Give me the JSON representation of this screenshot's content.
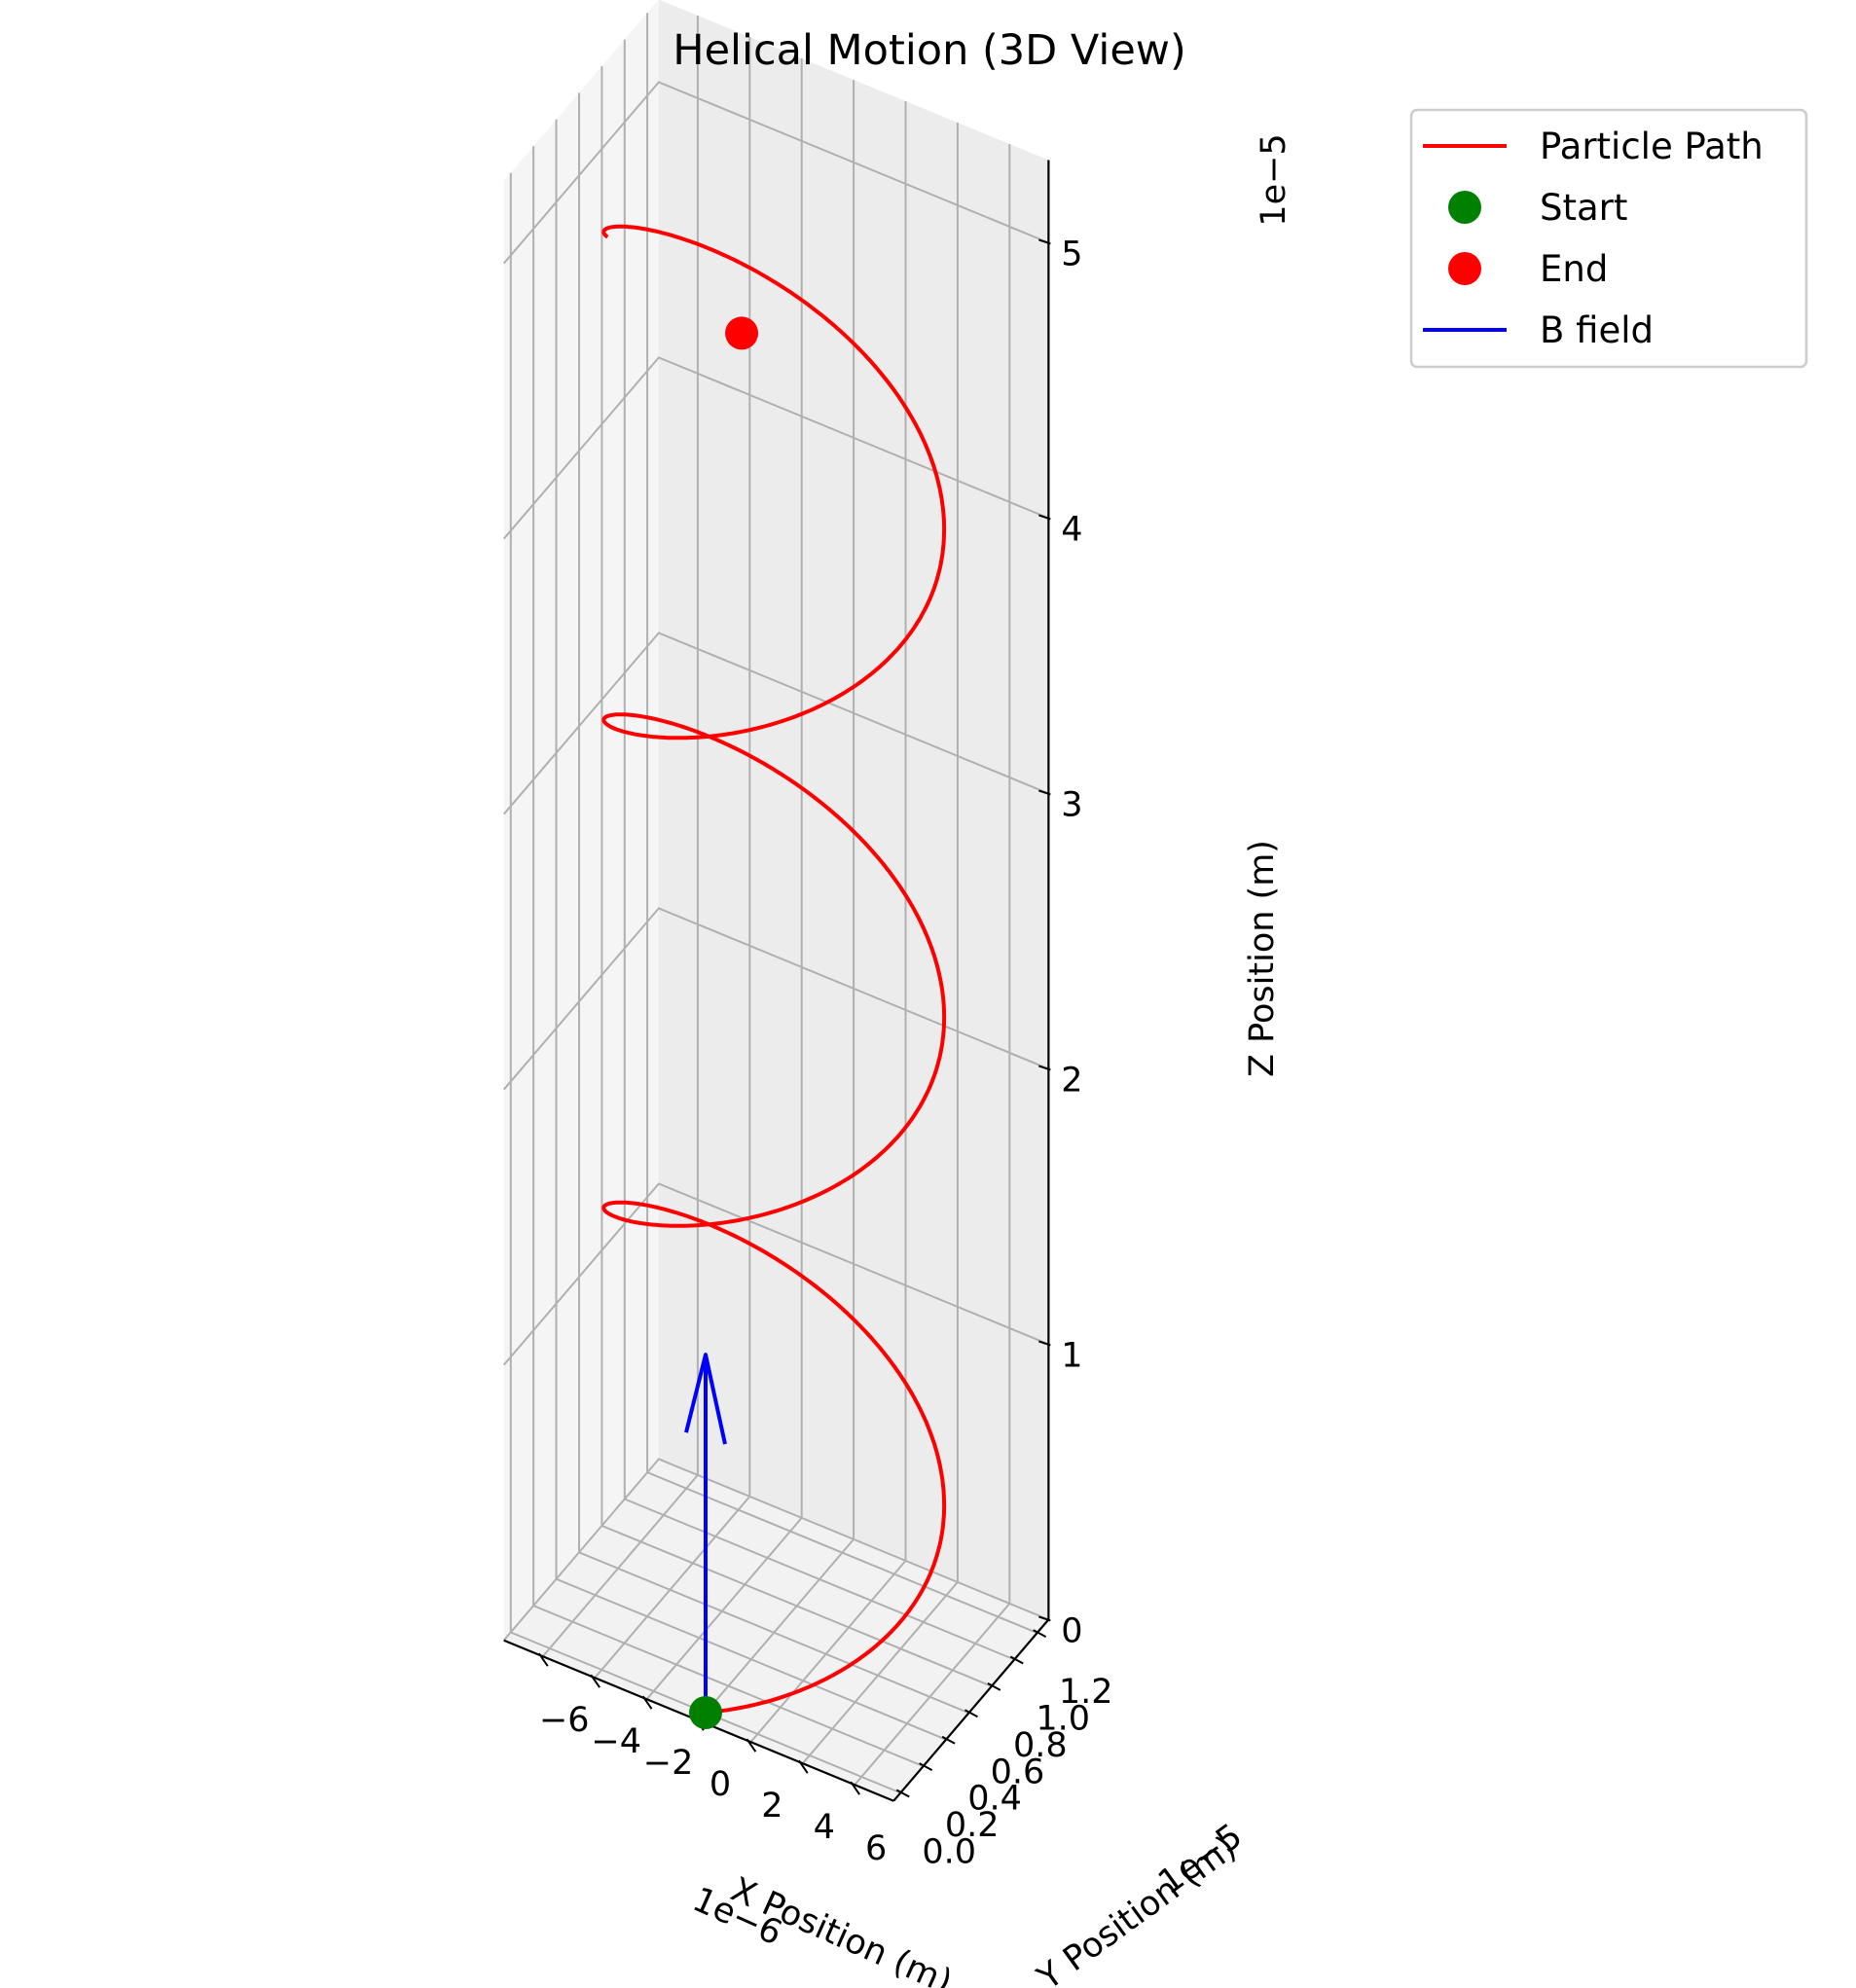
{
  "chart_data": {
    "type": "line",
    "projection": "3d",
    "title": "Helical Motion (3D View)",
    "xlabel": "X Position (m)",
    "ylabel": "Y Position (m)",
    "zlabel": "Z Position (m)",
    "x_offset_label": "1e−6",
    "y_offset_label": "1e−5",
    "z_offset_label": "1e−5",
    "x_ticks": [
      "−6",
      "−4",
      "−2",
      "0",
      "2",
      "4",
      "6"
    ],
    "y_ticks": [
      "0.0",
      "0.2",
      "0.4",
      "0.6",
      "0.8",
      "1.0",
      "1.2"
    ],
    "z_ticks": [
      "0",
      "1",
      "2",
      "3",
      "4",
      "5"
    ],
    "xlim_1e-6": [
      -7.5,
      7.5
    ],
    "ylim_1e-5": [
      -0.06,
      1.3
    ],
    "zlim_1e-5": [
      0,
      5.3
    ],
    "grid": true,
    "legend_position": "top-right, outside axes",
    "colors": {
      "path": "#ff0000",
      "start": "#008000",
      "end": "#ff0000",
      "b_field": "#0000ff",
      "grid": "#b0b0b0"
    },
    "legend": [
      {
        "label": "Particle Path",
        "kind": "line",
        "color": "#ff0000"
      },
      {
        "label": "Start",
        "kind": "marker",
        "color": "#008000"
      },
      {
        "label": "End",
        "kind": "marker",
        "color": "#ff0000"
      },
      {
        "label": "B field",
        "kind": "line",
        "color": "#0000ff"
      }
    ],
    "helix": {
      "radius_1e-6": 6.0,
      "center_x_1e-6": 0.0,
      "center_y_1e-5": 0.6,
      "turns": 2.85,
      "z_start_1e-5": 0.0,
      "z_end_1e-5": 5.05
    },
    "start_point": {
      "x_1e-6": 0.0,
      "y_1e-5": 0.0,
      "z_1e-5": 0.0
    },
    "end_point": {
      "x_1e-6": 1.3,
      "y_1e-5": 0.02,
      "z_1e-5": 5.05
    },
    "b_field_arrow": {
      "direction": "+z",
      "from_z_1e-5": 0.0,
      "to_z_1e-5": 1.3
    }
  }
}
